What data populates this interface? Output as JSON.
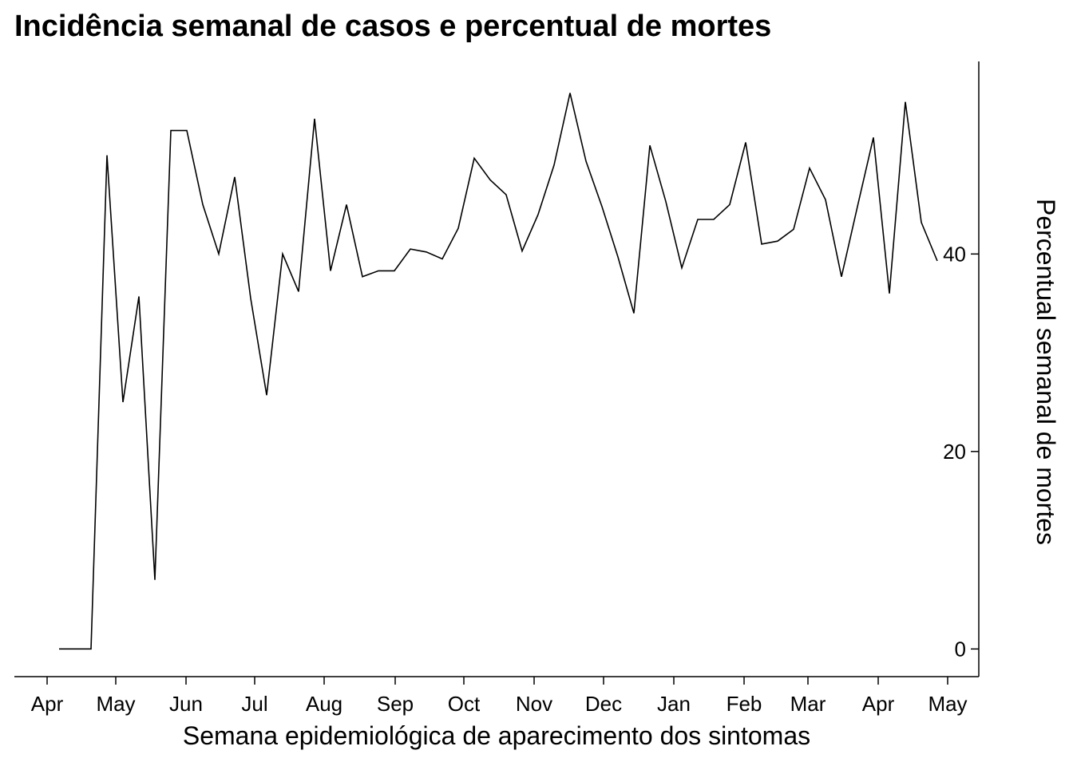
{
  "chart_data": {
    "type": "line",
    "title": "Incidência semanal de casos e percentual de mortes",
    "xlabel": "Semana epidemiológica de aparecimento dos sintomas",
    "ylabel": "Percentual semanal de mortes",
    "x_tick_labels": [
      "Apr",
      "May",
      "Jun",
      "Jul",
      "Aug",
      "Sep",
      "Oct",
      "Nov",
      "Dec",
      "Jan",
      "Feb",
      "Mar",
      "Apr",
      "May"
    ],
    "y_ticks": [
      0,
      20,
      40
    ],
    "ylim": [
      -2.8,
      59.5
    ],
    "y_axis_side": "right",
    "grid": false,
    "legend": "none",
    "color": "#000000",
    "series": [
      {
        "values": [
          0,
          0,
          0,
          50,
          25,
          35.7,
          7,
          52.5,
          52.5,
          45,
          40,
          47.8,
          35.5,
          25.7,
          40,
          36.2,
          53.7,
          38.3,
          45,
          37.7,
          38.3,
          38.3,
          40.5,
          40.2,
          39.5,
          42.6,
          49.7,
          47.5,
          46,
          40.3,
          44,
          49,
          56.3,
          49.4,
          44.8,
          39.7,
          34,
          51,
          45.3,
          38.6,
          43.5,
          43.5,
          45,
          51.3,
          41,
          41.3,
          42.5,
          48.7,
          45.5,
          37.7,
          44.8,
          51.8,
          36,
          55.4,
          43.2,
          39.3
        ]
      }
    ]
  }
}
